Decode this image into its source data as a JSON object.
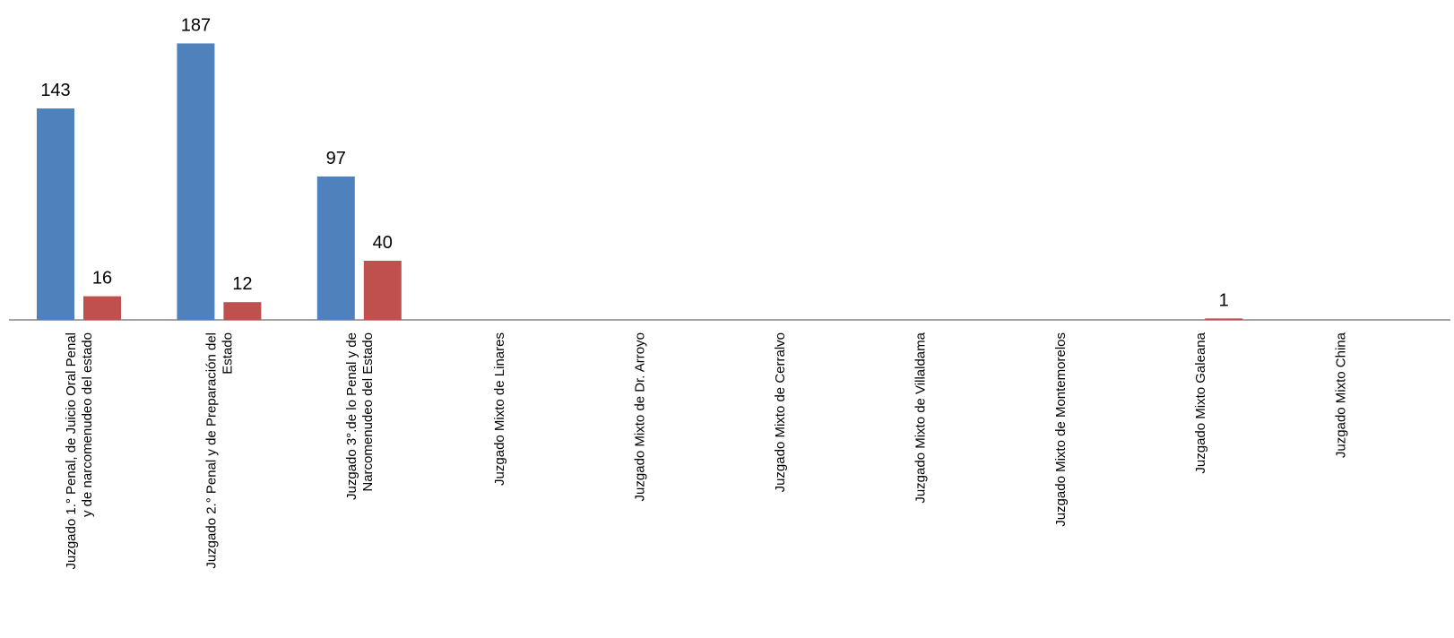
{
  "chart_data": {
    "type": "bar",
    "title": "",
    "xlabel": "",
    "ylabel": "",
    "ylim": [
      0,
      200
    ],
    "grid": false,
    "legend": "none",
    "categories": [
      [
        "Juzgado 1.° Penal, de Juicio Oral Penal",
        "y de narcomenudeo del estado"
      ],
      [
        "Juzgado 2.° Penal y de Preparación del",
        "Estado"
      ],
      [
        "Juzgado 3°.de lo Penal y de",
        "Narcomenudeo del Estado"
      ],
      [
        "Juzgado Mixto de Linares"
      ],
      [
        "Juzgado Mixto de  Dr. Arroyo"
      ],
      [
        "Juzgado Mixto de  Cerralvo"
      ],
      [
        "Juzgado Mixto de  Villaldama"
      ],
      [
        "Juzgado Mixto de Montemorelos"
      ],
      [
        "Juzgado Mixto Galeana"
      ],
      [
        "Juzgado Mixto China"
      ]
    ],
    "series": [
      {
        "color": "#4F81BD",
        "values": [
          143,
          187,
          97,
          0,
          0,
          0,
          0,
          0,
          0,
          0
        ]
      },
      {
        "color": "#C0504D",
        "values": [
          16,
          12,
          40,
          0,
          0,
          0,
          0,
          0,
          1,
          0
        ]
      }
    ],
    "data_labels": [
      [
        "143",
        "187",
        "97",
        "",
        "",
        "",
        "",
        "",
        "",
        ""
      ],
      [
        "16",
        "12",
        "40",
        "",
        "",
        "",
        "",
        "",
        "1",
        ""
      ]
    ],
    "axis_color": "#868686"
  }
}
